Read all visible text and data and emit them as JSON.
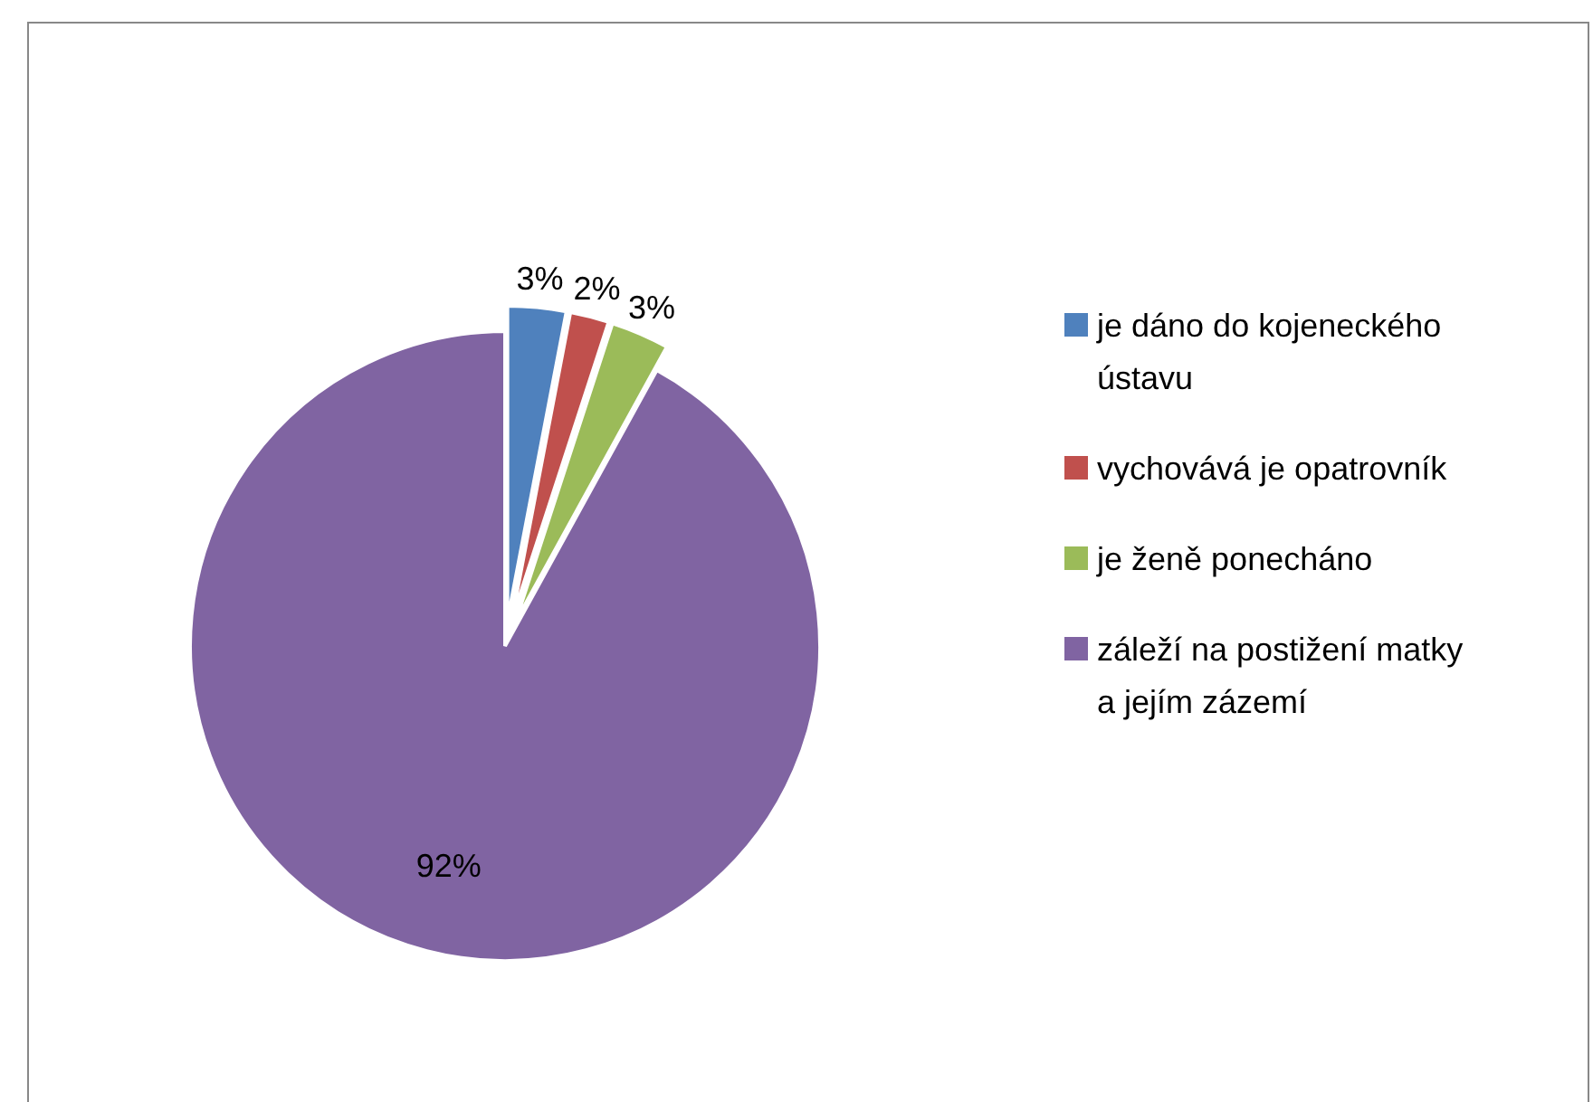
{
  "chart_data": {
    "type": "pie",
    "categories": [
      "je dáno do kojeneckého ústavu",
      "vychovává je opatrovník",
      "je ženě ponecháno",
      "záleží na postižení matky a jejím zázemí"
    ],
    "values": [
      3,
      2,
      3,
      92
    ],
    "colors": [
      "#4f81bd",
      "#c0504d",
      "#9bbb59",
      "#8064a2"
    ],
    "value_labels": [
      "3%",
      "2%",
      "3%",
      "92%"
    ],
    "legend": "right"
  }
}
